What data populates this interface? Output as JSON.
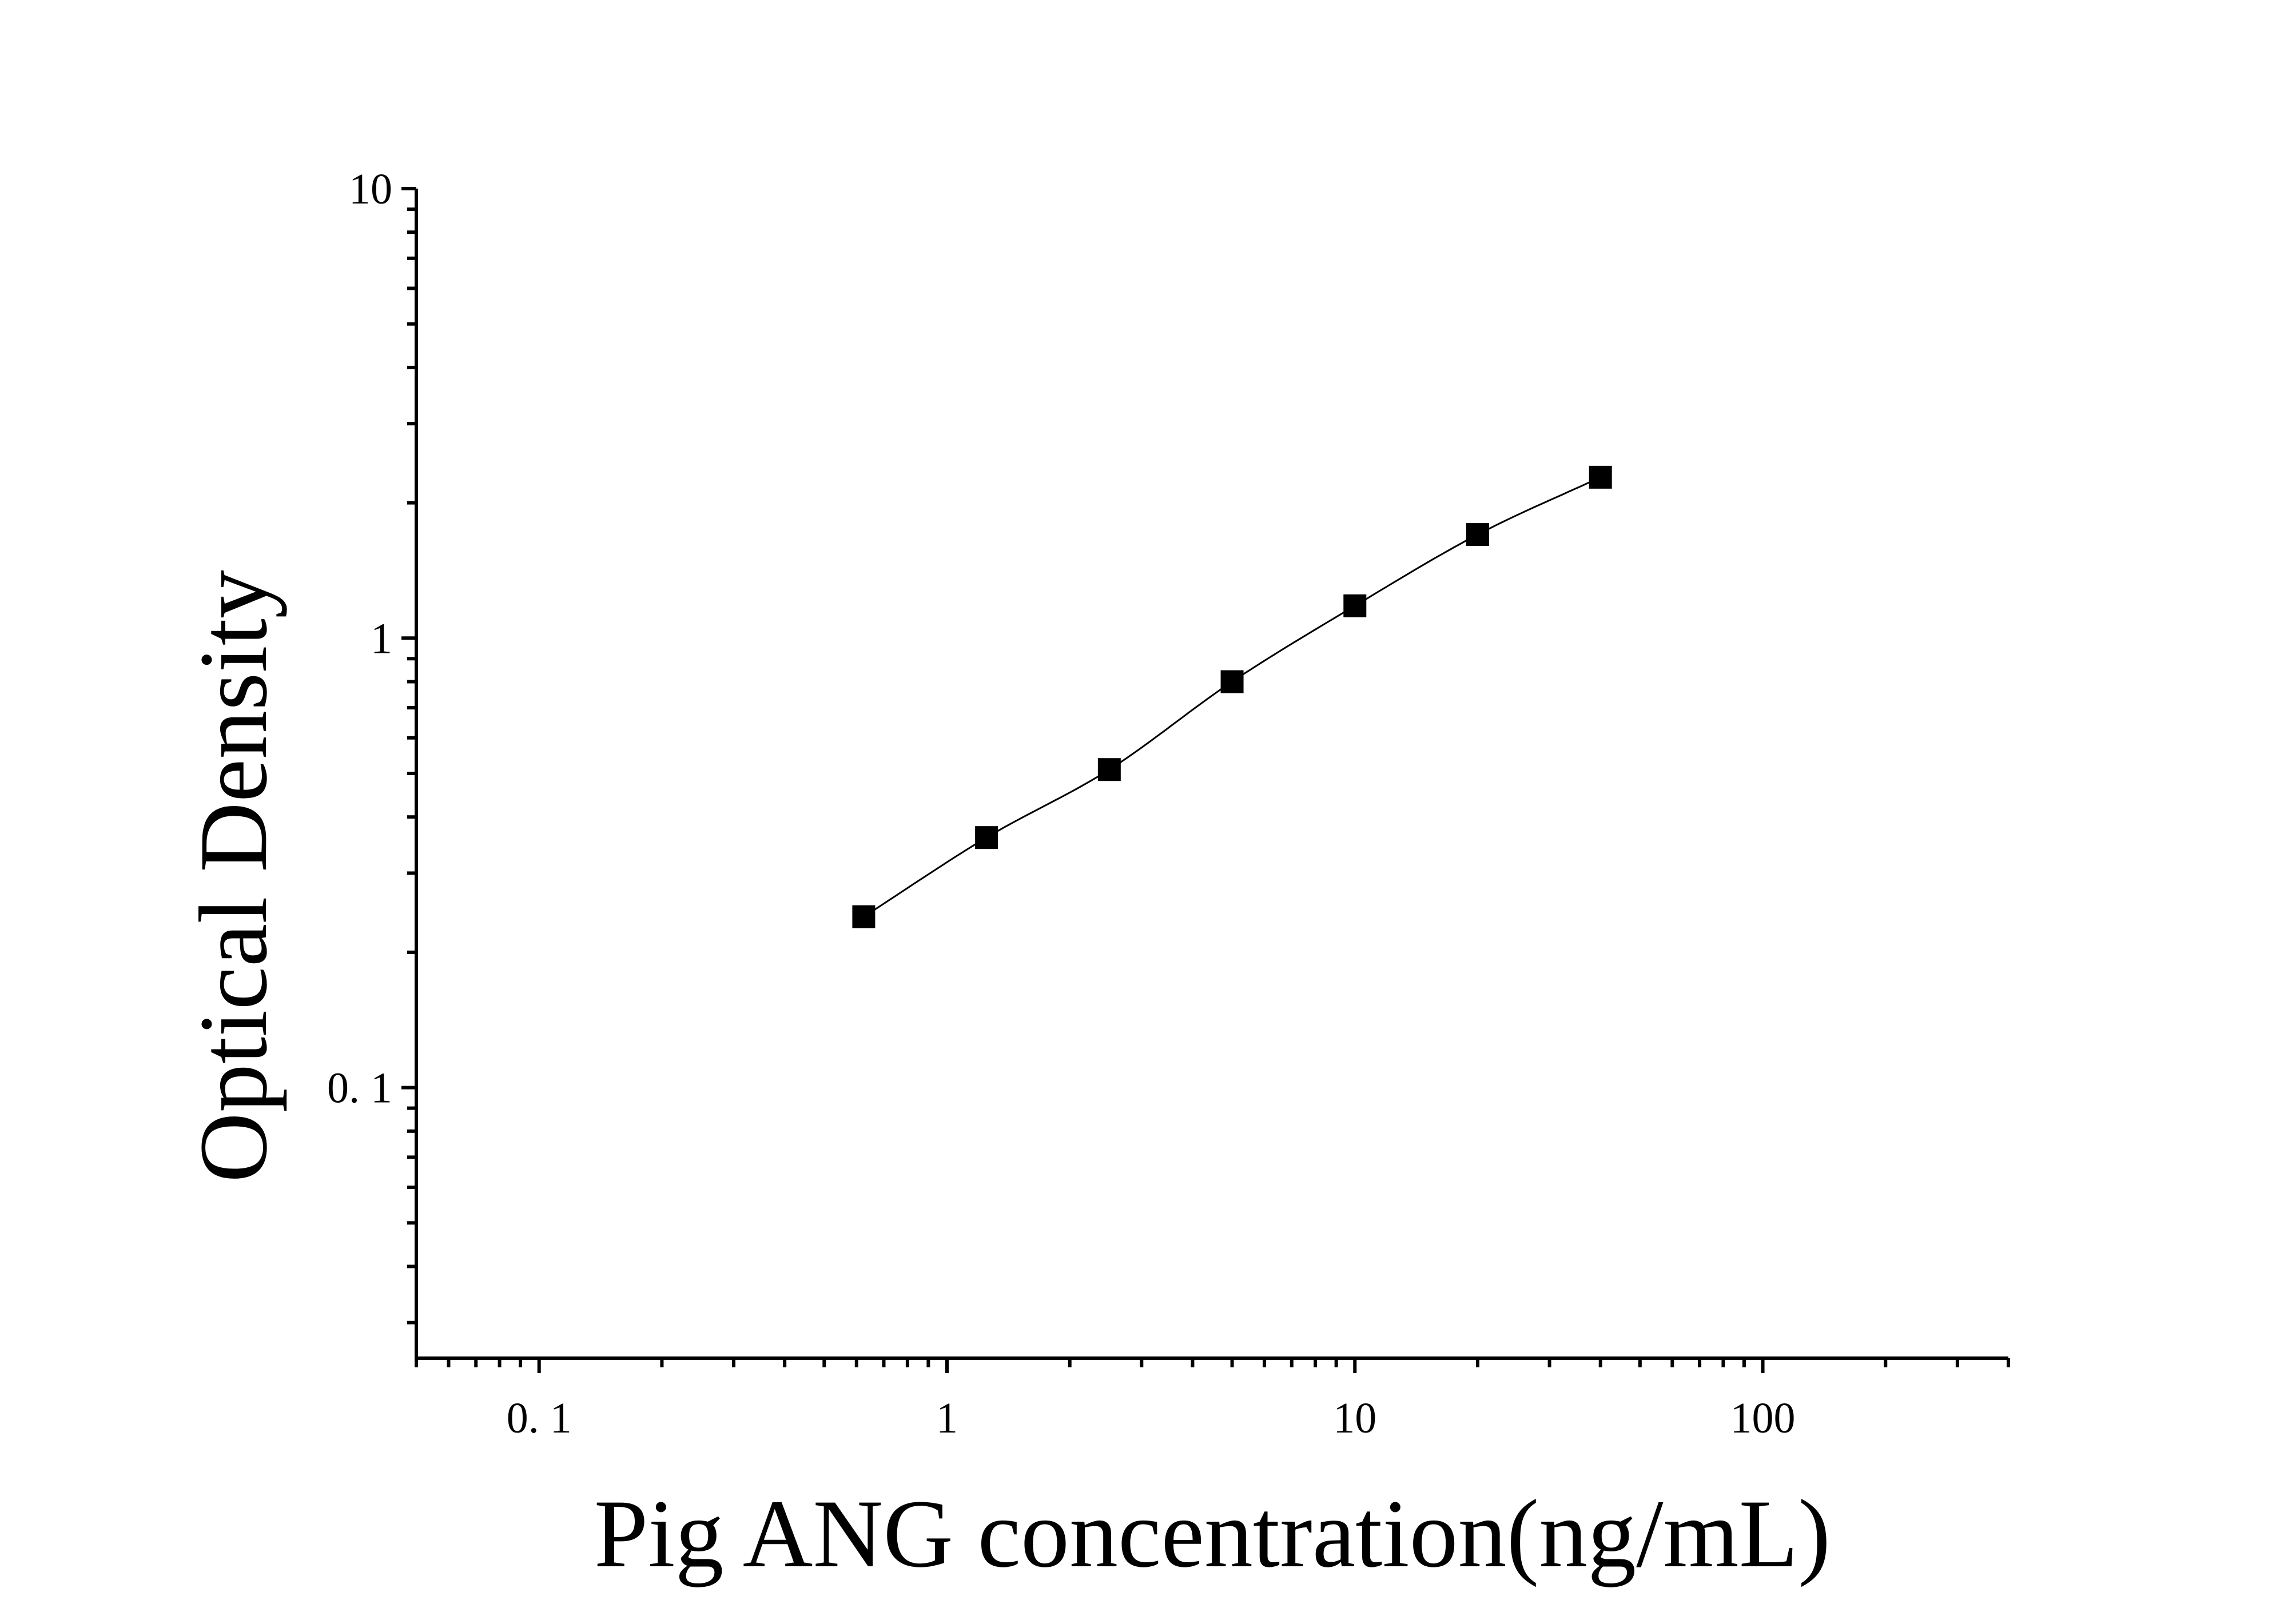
{
  "chart_data": {
    "type": "scatter",
    "title": "",
    "xlabel": "Pig ANG concentration(ng/mL)",
    "ylabel": "Optical Density",
    "x_scale": "log",
    "y_scale": "log",
    "xlim": [
      0.05,
      400
    ],
    "ylim": [
      0.025,
      10
    ],
    "x_ticks": [
      0.1,
      1,
      10,
      100
    ],
    "x_tick_labels": [
      "0. 1",
      "1",
      "10",
      "100"
    ],
    "y_ticks": [
      0.1,
      1,
      10
    ],
    "y_tick_labels": [
      "0. 1",
      "1",
      "10"
    ],
    "grid": false,
    "legend": "none",
    "marker_color": "#000000",
    "line_color": "#000000",
    "marker": "square",
    "fitted_curve": true,
    "series": [
      {
        "x": [
          0.625,
          1.25,
          2.5,
          5,
          10,
          20,
          40
        ],
        "y": [
          0.24,
          0.36,
          0.51,
          0.8,
          1.18,
          1.7,
          2.28
        ]
      }
    ]
  }
}
